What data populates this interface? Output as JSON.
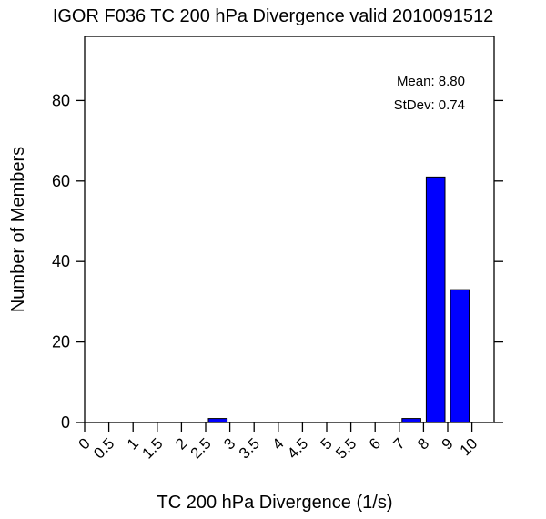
{
  "chart_data": {
    "type": "bar",
    "title": "IGOR F036 TC 200 hPa Divergence valid 2010091512",
    "xlabel": "TC 200 hPa Divergence (1/s)",
    "ylabel": "Number of Members",
    "categories": [
      "0",
      "0.5",
      "1",
      "1.5",
      "2",
      "2.5",
      "3",
      "3.5",
      "4",
      "4.5",
      "5",
      "5.5",
      "6",
      "7",
      "8",
      "9",
      "10"
    ],
    "bins": [
      {
        "from": "0",
        "to": "0.5",
        "value": 0
      },
      {
        "from": "0.5",
        "to": "1",
        "value": 0
      },
      {
        "from": "1",
        "to": "1.5",
        "value": 0
      },
      {
        "from": "1.5",
        "to": "2",
        "value": 0
      },
      {
        "from": "2",
        "to": "2.5",
        "value": 0
      },
      {
        "from": "2.5",
        "to": "3",
        "value": 1
      },
      {
        "from": "3",
        "to": "3.5",
        "value": 0
      },
      {
        "from": "3.5",
        "to": "4",
        "value": 0
      },
      {
        "from": "4",
        "to": "4.5",
        "value": 0
      },
      {
        "from": "4.5",
        "to": "5",
        "value": 0
      },
      {
        "from": "5",
        "to": "5.5",
        "value": 0
      },
      {
        "from": "5.5",
        "to": "6",
        "value": 0
      },
      {
        "from": "6",
        "to": "7",
        "value": 0
      },
      {
        "from": "7",
        "to": "8",
        "value": 1
      },
      {
        "from": "8",
        "to": "9",
        "value": 61
      },
      {
        "from": "9",
        "to": "10",
        "value": 33
      }
    ],
    "yticks": [
      0,
      20,
      40,
      60,
      80
    ],
    "ylim": [
      0,
      100
    ],
    "bar_color": "#0000ff",
    "grid": false,
    "annotations": {
      "mean": "Mean: 8.80",
      "stdev": "StDev: 0.74"
    }
  }
}
